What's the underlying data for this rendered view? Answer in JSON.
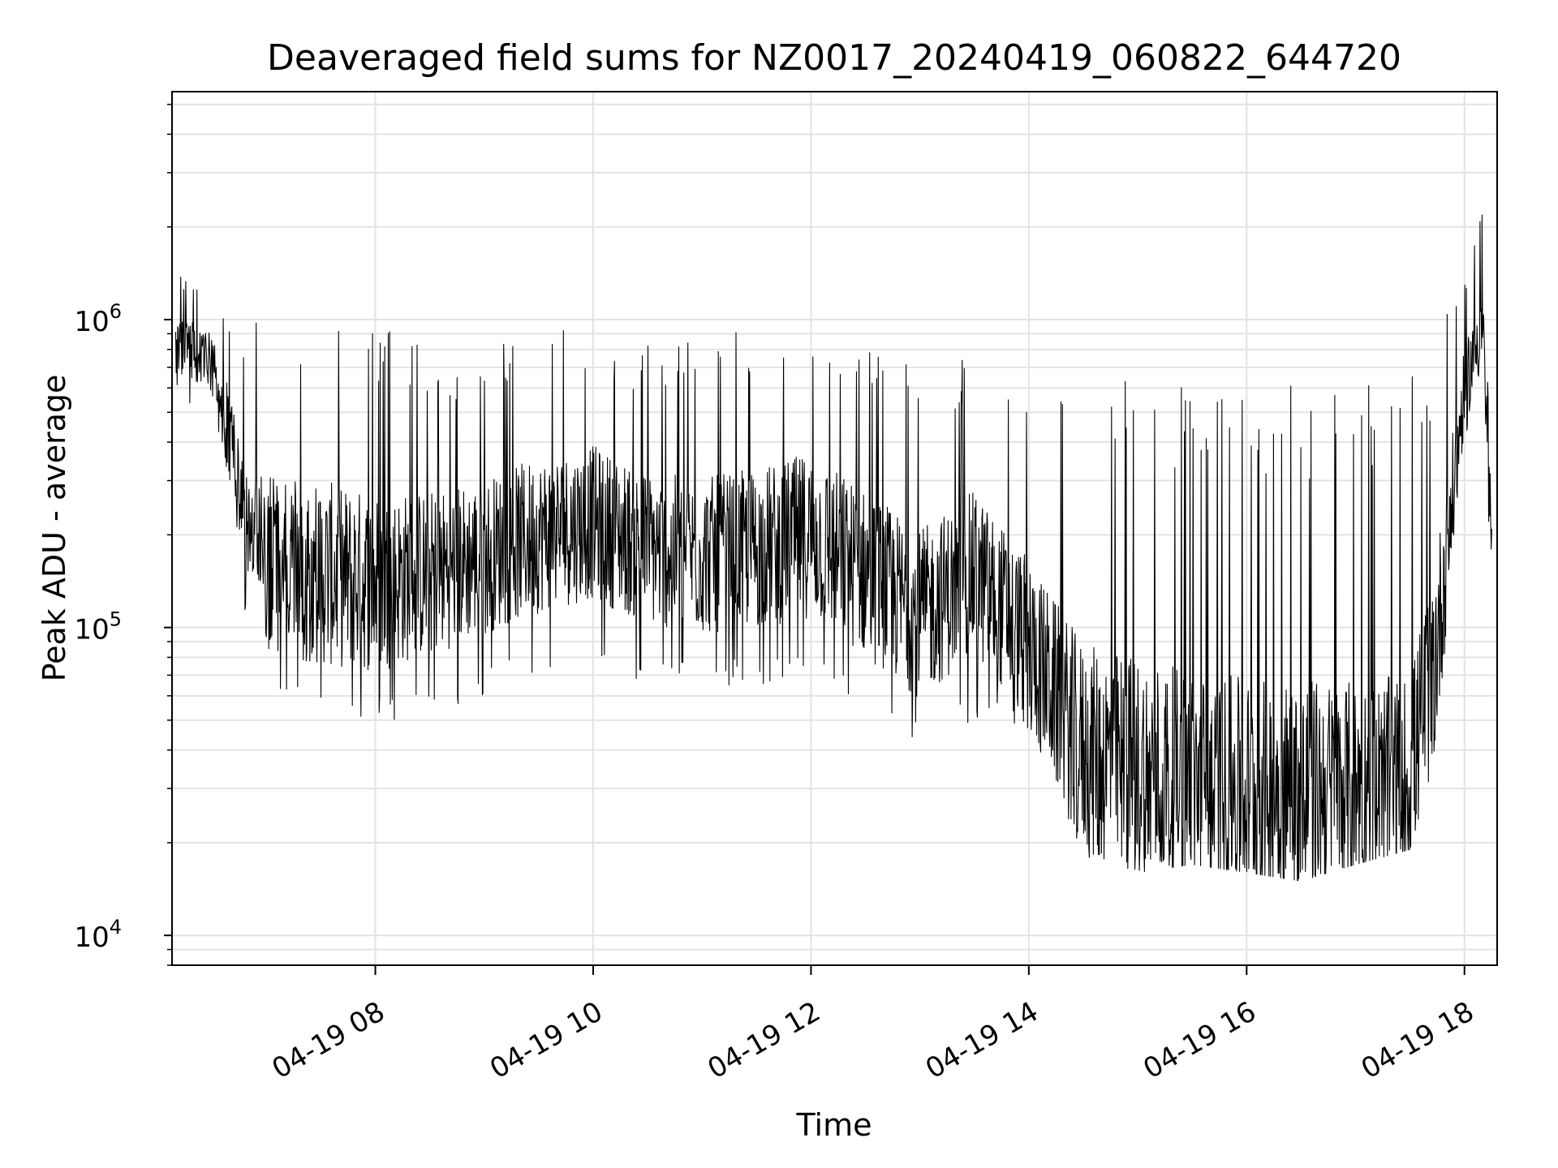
{
  "chart_data": {
    "type": "line",
    "title": "Deaveraged field sums for NZ0017_20240419_060822_644720",
    "xlabel": "Time",
    "ylabel": "Peak ADU - average",
    "yscale": "log",
    "ylim": [
      8000,
      5500000
    ],
    "xlim": [
      "2024-04-19 06:08",
      "2024-04-19 18:18"
    ],
    "x_ticks": [
      "04-19 08",
      "04-19 10",
      "04-19 12",
      "04-19 14",
      "04-19 16",
      "04-19 18"
    ],
    "y_ticks": [
      {
        "base": "10",
        "exp": "4"
      },
      {
        "base": "10",
        "exp": "5"
      },
      {
        "base": "10",
        "exp": "6"
      }
    ],
    "grid": true,
    "legend": "none",
    "series_color": "#000000",
    "series": [
      {
        "x": [
          "2024-04-19 06:10",
          "2024-04-19 06:20",
          "2024-04-19 06:30",
          "2024-04-19 06:40",
          "2024-04-19 06:50",
          "2024-04-19 07:00",
          "2024-04-19 07:30",
          "2024-04-19 08:00",
          "2024-04-19 08:30",
          "2024-04-19 09:00",
          "2024-04-19 09:30",
          "2024-04-19 10:00",
          "2024-04-19 10:30",
          "2024-04-19 11:00",
          "2024-04-19 11:30",
          "2024-04-19 12:00",
          "2024-04-19 12:30",
          "2024-04-19 13:00",
          "2024-04-19 13:30",
          "2024-04-19 14:00",
          "2024-04-19 14:30",
          "2024-04-19 15:00",
          "2024-04-19 15:30",
          "2024-04-19 16:00",
          "2024-04-19 16:30",
          "2024-04-19 17:00",
          "2024-04-19 17:30",
          "2024-04-19 17:45",
          "2024-04-19 18:00",
          "2024-04-19 18:10",
          "2024-04-19 18:15"
        ],
        "y_mid": [
          800000,
          800000,
          700000,
          400000,
          220000,
          160000,
          150000,
          140000,
          150000,
          170000,
          200000,
          220000,
          180000,
          170000,
          180000,
          200000,
          150000,
          110000,
          150000,
          90000,
          40000,
          35000,
          32000,
          30000,
          30000,
          30000,
          32000,
          90000,
          600000,
          1000000,
          170000
        ],
        "y_low": [
          600000,
          500000,
          400000,
          200000,
          100000,
          60000,
          50000,
          50000,
          50000,
          60000,
          70000,
          70000,
          65000,
          65000,
          65000,
          70000,
          55000,
          42000,
          50000,
          45000,
          18000,
          16000,
          17000,
          16000,
          15000,
          17000,
          19000,
          40000,
          400000,
          500000,
          130000
        ],
        "y_high": [
          1500000,
          1300000,
          1200000,
          1000000,
          900000,
          1100000,
          1100000,
          1000000,
          800000,
          800000,
          950000,
          900000,
          850000,
          900000,
          950000,
          1100000,
          900000,
          700000,
          800000,
          700000,
          600000,
          700000,
          600000,
          650000,
          600000,
          600000,
          650000,
          1000000,
          1500000,
          2500000,
          220000
        ]
      }
    ]
  }
}
